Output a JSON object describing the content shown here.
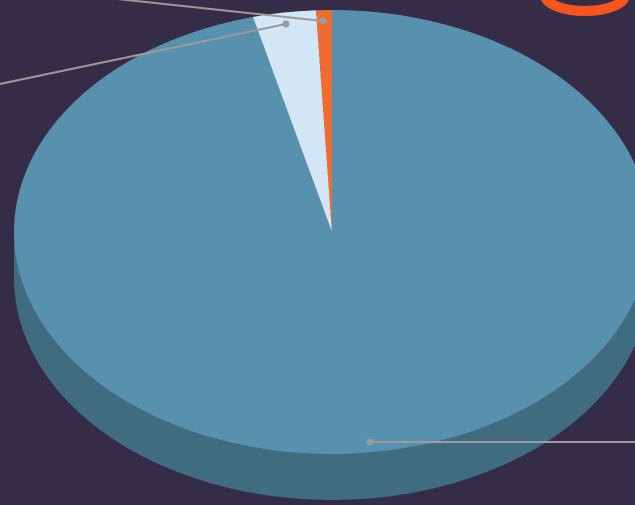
{
  "colors": {
    "background": "#352d47",
    "pie_top": "#5891ae",
    "pie_side": "#406c80",
    "slice_light": "#d3e6f5",
    "slice_orange": "#f06d31",
    "leader_line": "#9b9b9b",
    "corner_accent": "#f7541f"
  },
  "chart_data": {
    "type": "pie",
    "style": "3d",
    "legend": "none",
    "slices": [
      {
        "value": 96.0,
        "color": "#5891ae"
      },
      {
        "value": 3.2,
        "color": "#d3e6f5"
      },
      {
        "value": 0.8,
        "color": "#f06d31"
      }
    ]
  }
}
